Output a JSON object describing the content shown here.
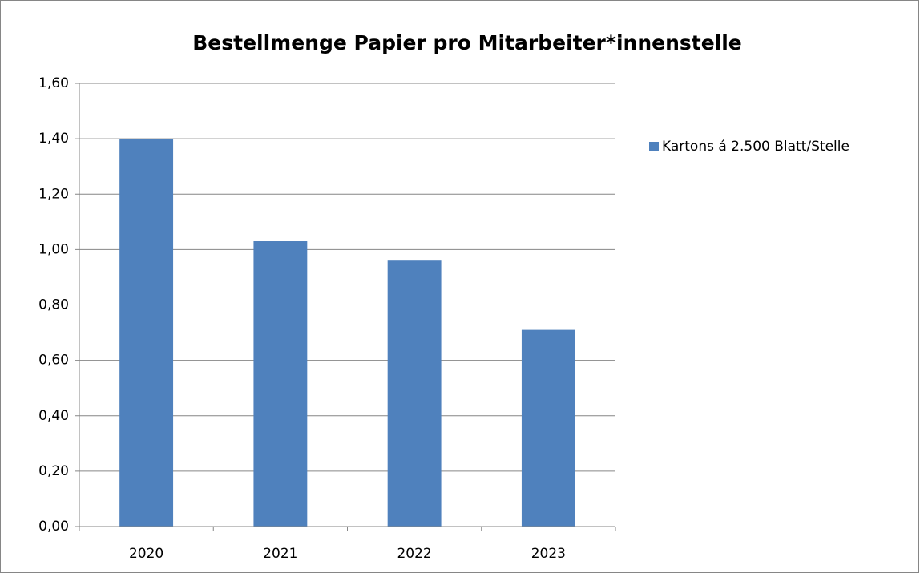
{
  "chart_data": {
    "type": "bar",
    "title": "Bestellmenge Papier pro Mitarbeiter*innenstelle",
    "categories": [
      "2020",
      "2021",
      "2022",
      "2023"
    ],
    "series": [
      {
        "name": "Kartons á 2.500 Blatt/Stelle",
        "color": "#4f81bd",
        "values": [
          1.4,
          1.03,
          0.96,
          0.71
        ]
      }
    ],
    "ylim": [
      0,
      1.6
    ],
    "yticks": [
      {
        "value": 0,
        "label": "0,00"
      },
      {
        "value": 0.2,
        "label": "0,20"
      },
      {
        "value": 0.4,
        "label": "0,40"
      },
      {
        "value": 0.6,
        "label": "0,60"
      },
      {
        "value": 0.8,
        "label": "0,80"
      },
      {
        "value": 1.0,
        "label": "1,00"
      },
      {
        "value": 1.2,
        "label": "1,20"
      },
      {
        "value": 1.4,
        "label": "1,40"
      },
      {
        "value": 1.6,
        "label": "1,60"
      }
    ],
    "grid": true,
    "legend": "right"
  }
}
